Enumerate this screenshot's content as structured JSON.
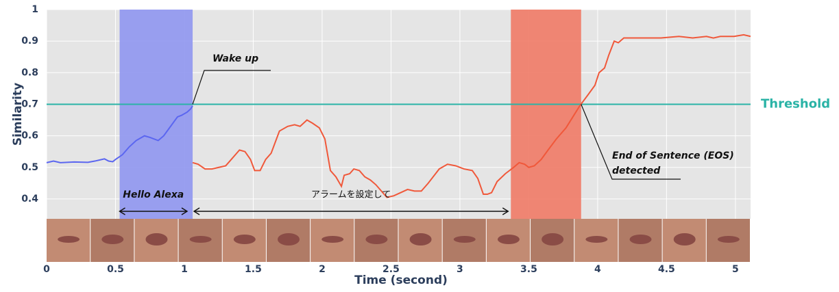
{
  "chart_data": {
    "type": "line",
    "xlabel": "Time (second)",
    "ylabel": "Similarity",
    "xlim": [
      0,
      5.11
    ],
    "ylim": [
      0.337,
      1
    ],
    "xticks": [
      0,
      0.5,
      1,
      1.5,
      2,
      2.5,
      3,
      3.5,
      4,
      4.5,
      5
    ],
    "yticks": [
      0.4,
      0.5,
      0.6,
      0.7,
      0.8,
      0.9,
      1
    ],
    "grid": true,
    "threshold": {
      "value": 0.7,
      "label": "Threshold",
      "color": "#2ab3a6"
    },
    "regions": [
      {
        "x": [
          0.53,
          1.06
        ],
        "color": "#8f96f0"
      },
      {
        "x": [
          3.37,
          3.88
        ],
        "color": "#f07a66"
      }
    ],
    "series": [
      {
        "color": "#5b66f0",
        "x": [
          0,
          0.05,
          0.1,
          0.2,
          0.3,
          0.35,
          0.4,
          0.42,
          0.45,
          0.48,
          0.5,
          0.55,
          0.6,
          0.65,
          0.71,
          0.75,
          0.81,
          0.85,
          0.9,
          0.95,
          0.98,
          1.02,
          1.045,
          1.06
        ],
        "values": [
          0.515,
          0.52,
          0.515,
          0.517,
          0.516,
          0.52,
          0.525,
          0.527,
          0.52,
          0.518,
          0.525,
          0.54,
          0.565,
          0.585,
          0.6,
          0.595,
          0.585,
          0.6,
          0.63,
          0.66,
          0.665,
          0.675,
          0.685,
          0.695
        ]
      },
      {
        "color": "#f0583a",
        "x": [
          1.06,
          1.1,
          1.15,
          1.2,
          1.25,
          1.3,
          1.33,
          1.38,
          1.4,
          1.44,
          1.48,
          1.51,
          1.55,
          1.59,
          1.63,
          1.69,
          1.75,
          1.8,
          1.84,
          1.89,
          1.93,
          1.98,
          2.02,
          2.06,
          2.1,
          2.14,
          2.16,
          2.2,
          2.23,
          2.27,
          2.31,
          2.35,
          2.39,
          2.43,
          2.47,
          2.52,
          2.57,
          2.62,
          2.67,
          2.72,
          2.77,
          2.85,
          2.91,
          2.97,
          3.03,
          3.09,
          3.13,
          3.17,
          3.2,
          3.23,
          3.27,
          3.33,
          3.39,
          3.43,
          3.47,
          3.5,
          3.54,
          3.59,
          3.64,
          3.7,
          3.77,
          3.82,
          3.87,
          3.93,
          3.98,
          4.01,
          4.05,
          4.08,
          4.12,
          4.15,
          4.19,
          4.26,
          4.36,
          4.46,
          4.59,
          4.69,
          4.79,
          4.84,
          4.89,
          4.99,
          5.06,
          5.11
        ],
        "values": [
          0.515,
          0.51,
          0.495,
          0.495,
          0.5,
          0.505,
          0.52,
          0.545,
          0.555,
          0.55,
          0.525,
          0.49,
          0.49,
          0.525,
          0.545,
          0.615,
          0.63,
          0.635,
          0.63,
          0.65,
          0.64,
          0.625,
          0.59,
          0.49,
          0.47,
          0.44,
          0.475,
          0.48,
          0.495,
          0.49,
          0.47,
          0.46,
          0.445,
          0.425,
          0.405,
          0.41,
          0.42,
          0.43,
          0.425,
          0.425,
          0.45,
          0.495,
          0.51,
          0.505,
          0.495,
          0.49,
          0.465,
          0.415,
          0.415,
          0.42,
          0.455,
          0.48,
          0.5,
          0.515,
          0.51,
          0.5,
          0.505,
          0.525,
          0.555,
          0.59,
          0.625,
          0.66,
          0.695,
          0.73,
          0.76,
          0.8,
          0.815,
          0.855,
          0.9,
          0.895,
          0.91,
          0.91,
          0.91,
          0.91,
          0.915,
          0.91,
          0.915,
          0.91,
          0.915,
          0.915,
          0.92,
          0.915
        ]
      }
    ],
    "annotations": {
      "wake": "Wake up",
      "hello": {
        "text": "Hello Alexa",
        "x": [
          0.53,
          1.02
        ]
      },
      "command": {
        "text": "アラームを設定して",
        "x": [
          1.07,
          3.35
        ]
      },
      "eos": [
        "End of Sentence (EOS)",
        "detected"
      ]
    }
  }
}
